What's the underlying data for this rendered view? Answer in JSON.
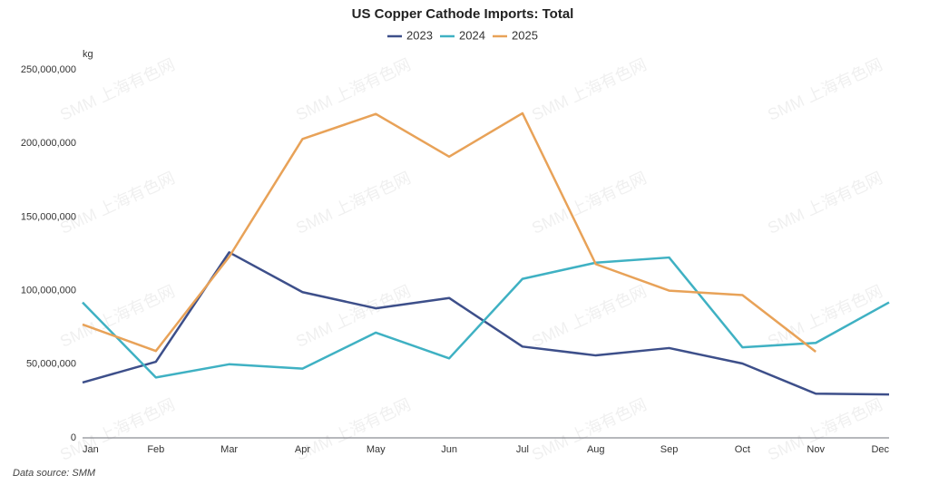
{
  "chart_data": {
    "type": "line",
    "title": "US Copper Cathode Imports: Total",
    "y_label": "kg",
    "source": "Data source:  SMM",
    "watermark": "SMM 上海有色网",
    "categories": [
      "Jan",
      "Feb",
      "Mar",
      "Apr",
      "May",
      "Jun",
      "Jul",
      "Aug",
      "Sep",
      "Oct",
      "Nov",
      "Dec"
    ],
    "series": [
      {
        "name": "2023",
        "color": "#3d4f8a",
        "values": [
          37600000,
          51700000,
          126000000,
          99000000,
          88000000,
          95000000,
          62000000,
          56000000,
          61000000,
          50500000,
          30000000,
          29500000
        ]
      },
      {
        "name": "2024",
        "color": "#3fb1c3",
        "values": [
          92000000,
          41000000,
          50000000,
          47000000,
          71500000,
          54000000,
          108000000,
          119000000,
          122500000,
          61500000,
          64500000,
          92000000
        ]
      },
      {
        "name": "2025",
        "color": "#e8a258",
        "values": [
          77000000,
          59000000,
          123000000,
          203000000,
          220000000,
          191000000,
          220500000,
          118000000,
          100000000,
          97000000,
          58500000,
          null
        ]
      }
    ],
    "ylim": [
      0,
      250000000
    ],
    "yticks": [
      0,
      {
        "value": 50000000,
        "label": "50,000,000"
      },
      {
        "value": 100000000,
        "label": "100,000,000"
      },
      {
        "value": 150000000,
        "label": "150,000,000"
      },
      {
        "value": 200000000,
        "label": "200,000,000"
      },
      {
        "value": 250000000,
        "label": "250,000,000"
      }
    ],
    "grid": false,
    "legend": "top"
  }
}
